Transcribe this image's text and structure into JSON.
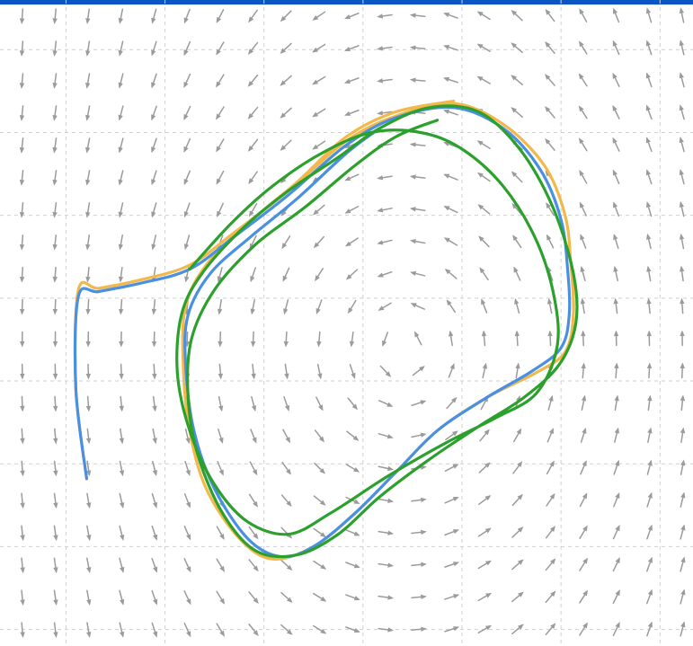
{
  "chart_data": {
    "type": "vector-field-with-trajectories",
    "title": "",
    "xlabel": "",
    "ylabel": "",
    "grid": true,
    "legend": "none",
    "xlim": [
      0,
      8.4
    ],
    "ylim": [
      0,
      7.8
    ],
    "grid_x": [
      0.8,
      2.0,
      3.2,
      4.4,
      5.6,
      6.8,
      8.0
    ],
    "grid_y": [
      0.2,
      1.2,
      2.2,
      3.2,
      4.2,
      5.2,
      6.2,
      7.2
    ],
    "vector_field": {
      "center": [
        4.9,
        3.6
      ],
      "rotation": "counterclockwise",
      "far_left_direction": "down",
      "far_right_direction": "up",
      "color": "#9b9b9b"
    },
    "colors": {
      "orange": "#f2b84b",
      "blue": "#4a90e2",
      "green": "#2ca02c",
      "top_bar": "#0a56c2",
      "grid": "#cfcfcf",
      "arrows": "#9b9b9b"
    },
    "series": [
      {
        "color": "#f2b84b",
        "points": [
          [
            1.05,
            2.02
          ],
          [
            0.92,
            3.1
          ],
          [
            0.95,
            4.3
          ],
          [
            1.2,
            4.32
          ],
          [
            1.7,
            4.42
          ],
          [
            2.3,
            4.6
          ],
          [
            2.85,
            5.0
          ],
          [
            3.5,
            5.5
          ],
          [
            4.2,
            6.1
          ],
          [
            4.8,
            6.4
          ],
          [
            5.5,
            6.55
          ],
          [
            6.1,
            6.3
          ],
          [
            6.6,
            5.8
          ],
          [
            6.85,
            5.2
          ],
          [
            6.92,
            4.6
          ],
          [
            6.95,
            4.0
          ],
          [
            6.85,
            3.55
          ],
          [
            6.5,
            3.3
          ],
          [
            5.9,
            3.0
          ],
          [
            5.3,
            2.6
          ],
          [
            4.8,
            2.1
          ],
          [
            4.3,
            1.6
          ],
          [
            3.8,
            1.2
          ],
          [
            3.3,
            1.05
          ],
          [
            2.9,
            1.3
          ],
          [
            2.5,
            1.9
          ],
          [
            2.3,
            2.6
          ],
          [
            2.22,
            3.4
          ],
          [
            2.25,
            4.1
          ],
          [
            2.5,
            4.6
          ],
          [
            3.0,
            5.1
          ],
          [
            3.6,
            5.6
          ],
          [
            4.2,
            6.15
          ],
          [
            4.8,
            6.45
          ],
          [
            5.5,
            6.58
          ]
        ]
      },
      {
        "color": "#4a90e2",
        "points": [
          [
            1.05,
            2.02
          ],
          [
            0.92,
            3.1
          ],
          [
            0.95,
            4.22
          ],
          [
            1.2,
            4.28
          ],
          [
            1.7,
            4.38
          ],
          [
            2.3,
            4.55
          ],
          [
            2.85,
            4.95
          ],
          [
            3.5,
            5.45
          ],
          [
            4.2,
            6.05
          ],
          [
            4.8,
            6.38
          ],
          [
            5.5,
            6.5
          ],
          [
            6.1,
            6.25
          ],
          [
            6.55,
            5.75
          ],
          [
            6.8,
            5.15
          ],
          [
            6.88,
            4.55
          ],
          [
            6.9,
            4.0
          ],
          [
            6.8,
            3.6
          ],
          [
            6.45,
            3.32
          ],
          [
            5.9,
            3.0
          ],
          [
            5.3,
            2.6
          ],
          [
            4.8,
            2.1
          ],
          [
            4.3,
            1.6
          ],
          [
            3.8,
            1.2
          ],
          [
            3.4,
            1.08
          ],
          [
            3.0,
            1.3
          ],
          [
            2.6,
            1.9
          ],
          [
            2.35,
            2.6
          ],
          [
            2.25,
            3.4
          ],
          [
            2.28,
            4.0
          ],
          [
            2.55,
            4.5
          ],
          [
            3.05,
            4.95
          ],
          [
            3.6,
            5.4
          ],
          [
            4.2,
            5.95
          ],
          [
            4.6,
            6.25
          ]
        ]
      },
      {
        "color": "#2ca02c",
        "points": [
          [
            2.3,
            4.55
          ],
          [
            2.8,
            5.1
          ],
          [
            3.3,
            5.55
          ],
          [
            3.9,
            5.95
          ],
          [
            4.5,
            6.2
          ],
          [
            5.1,
            6.2
          ],
          [
            5.6,
            6.0
          ],
          [
            6.1,
            5.55
          ],
          [
            6.5,
            4.9
          ],
          [
            6.72,
            4.2
          ],
          [
            6.75,
            3.6
          ],
          [
            6.5,
            3.05
          ],
          [
            6.0,
            2.75
          ],
          [
            5.4,
            2.45
          ],
          [
            4.7,
            2.05
          ],
          [
            4.0,
            1.6
          ],
          [
            3.5,
            1.35
          ],
          [
            3.0,
            1.5
          ],
          [
            2.6,
            1.95
          ],
          [
            2.3,
            2.6
          ],
          [
            2.15,
            3.3
          ],
          [
            2.2,
            4.0
          ],
          [
            2.45,
            4.5
          ],
          [
            2.95,
            5.05
          ],
          [
            3.5,
            5.5
          ],
          [
            4.1,
            5.9
          ],
          [
            4.6,
            6.25
          ],
          [
            5.2,
            6.5
          ],
          [
            5.8,
            6.45
          ],
          [
            6.3,
            6.0
          ],
          [
            6.7,
            5.3
          ],
          [
            6.95,
            4.5
          ],
          [
            6.98,
            3.9
          ],
          [
            6.78,
            3.4
          ],
          [
            6.35,
            3.0
          ],
          [
            5.8,
            2.65
          ],
          [
            5.2,
            2.25
          ],
          [
            4.6,
            1.8
          ],
          [
            4.1,
            1.35
          ],
          [
            3.6,
            1.1
          ],
          [
            3.1,
            1.15
          ],
          [
            2.7,
            1.6
          ],
          [
            2.4,
            2.3
          ],
          [
            2.28,
            3.0
          ],
          [
            2.32,
            3.7
          ],
          [
            2.6,
            4.3
          ],
          [
            3.1,
            4.85
          ],
          [
            3.7,
            5.3
          ],
          [
            4.3,
            5.8
          ],
          [
            4.8,
            6.15
          ],
          [
            5.3,
            6.35
          ]
        ]
      }
    ]
  }
}
